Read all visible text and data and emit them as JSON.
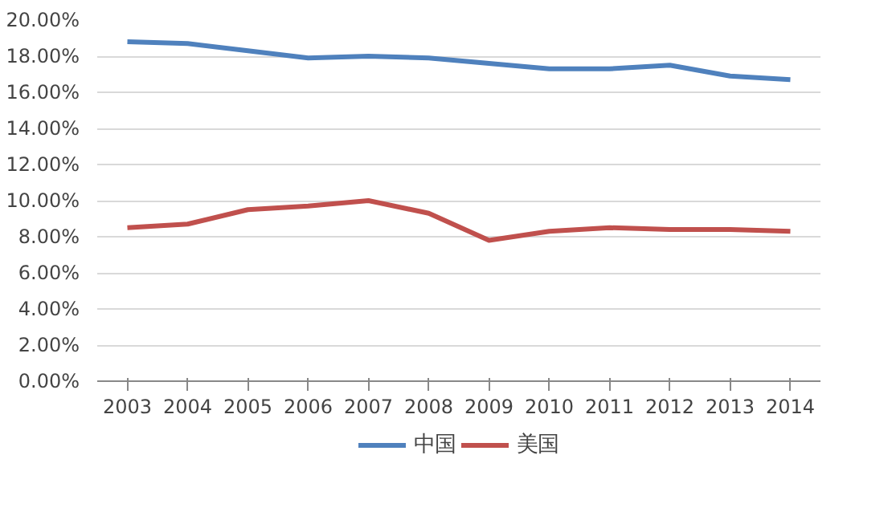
{
  "chart_data": {
    "type": "line",
    "categories": [
      "2003",
      "2004",
      "2005",
      "2006",
      "2007",
      "2008",
      "2009",
      "2010",
      "2011",
      "2012",
      "2013",
      "2014"
    ],
    "series": [
      {
        "name": "中国",
        "color": "#4f81bd",
        "values": [
          18.8,
          18.7,
          18.3,
          17.9,
          18.0,
          17.9,
          17.6,
          17.3,
          17.3,
          17.5,
          16.9,
          16.7
        ]
      },
      {
        "name": "美国",
        "color": "#c0504d",
        "values": [
          8.5,
          8.7,
          9.5,
          9.7,
          10.0,
          9.3,
          7.8,
          8.3,
          8.5,
          8.4,
          8.4,
          8.3
        ]
      }
    ],
    "ylim": [
      0,
      20
    ],
    "yticks": [
      {
        "value": 0,
        "label": "0.00%"
      },
      {
        "value": 2,
        "label": "2.00%"
      },
      {
        "value": 4,
        "label": "4.00%"
      },
      {
        "value": 6,
        "label": "6.00%"
      },
      {
        "value": 8,
        "label": "8.00%"
      },
      {
        "value": 10,
        "label": "10.00%"
      },
      {
        "value": 12,
        "label": "12.00%"
      },
      {
        "value": 14,
        "label": "14.00%"
      },
      {
        "value": 16,
        "label": "16.00%"
      },
      {
        "value": 18,
        "label": "18.00%"
      },
      {
        "value": 20,
        "label": "20.00%"
      }
    ],
    "grid": "y",
    "legend": "bottom",
    "marker": "none",
    "line_style": "solid"
  }
}
